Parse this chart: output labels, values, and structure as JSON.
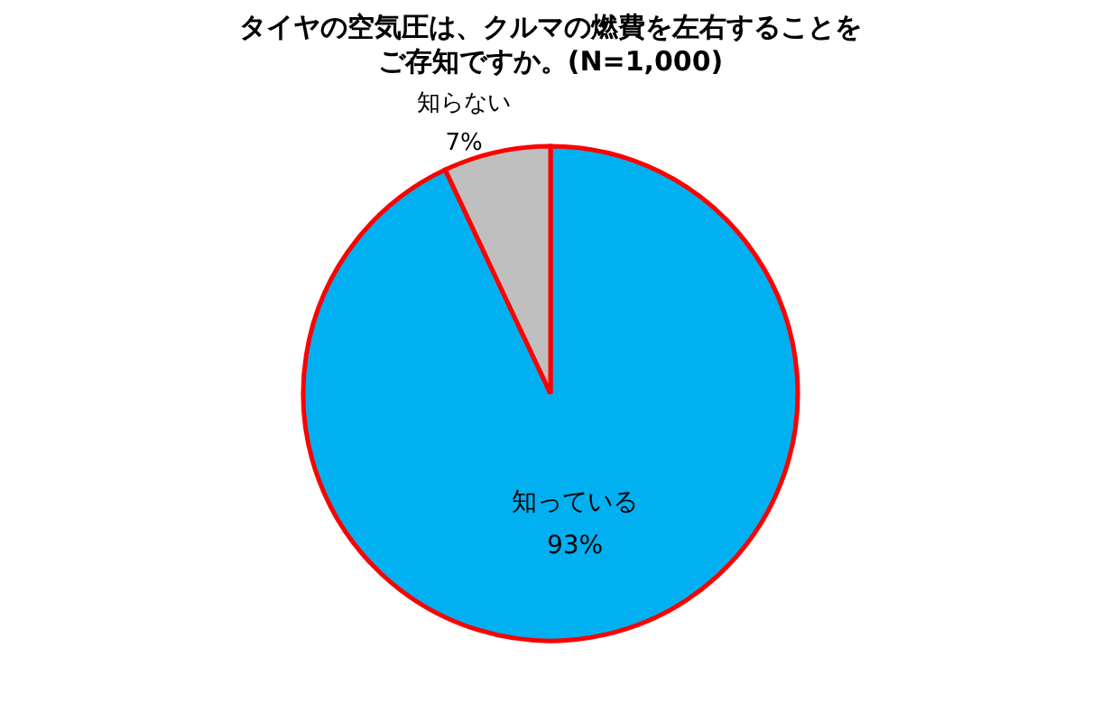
{
  "chart_data": {
    "type": "pie",
    "title": "タイヤの空気圧は、クルマの燃費を左右することを",
    "subtitle": "ご存知ですか。(N=1,000)",
    "categories": [
      "知っている",
      "知らない"
    ],
    "values": [
      93,
      7
    ],
    "value_labels": [
      "93%",
      "7%"
    ],
    "colors": [
      "#00b0f0",
      "#bfbfbf"
    ]
  }
}
